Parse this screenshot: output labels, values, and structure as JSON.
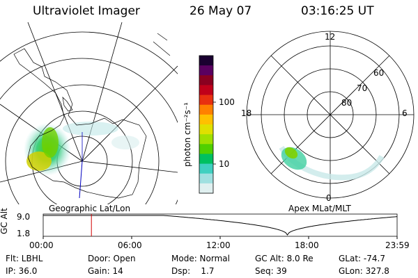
{
  "header": {
    "title": "Ultraviolet Imager",
    "date": "26 May 07",
    "time": "03:16:25 UT"
  },
  "left_panel": {
    "caption": "Geographic Lat/Lon"
  },
  "right_panel": {
    "caption": "Apex MLat/MLT",
    "mlt_labels": [
      "12",
      "18",
      "6",
      "0"
    ],
    "lat_labels": [
      "60",
      "70",
      "80"
    ]
  },
  "colorbar": {
    "unit": "photon cm⁻²s⁻¹",
    "ticks": [
      "100",
      "10"
    ],
    "colors": [
      "#1a0030",
      "#5a0060",
      "#8a0020",
      "#c0001a",
      "#e83010",
      "#ff8000",
      "#ffc000",
      "#e0e000",
      "#a0e000",
      "#50d000",
      "#00c060",
      "#40d0c0",
      "#a0e0e0",
      "#e0f0f0"
    ]
  },
  "altitude_plot": {
    "ylabel": "GC Alt",
    "y_ticks": [
      "9.0",
      "1.8"
    ],
    "x_ticks": [
      "00:00",
      "06:00",
      "12:00",
      "18:00",
      "23:59"
    ],
    "marker_hours": 3.27,
    "marker_color": "#d00000"
  },
  "footer": {
    "row1": [
      "Flt: LBHL",
      "Door: Open",
      "Mode: Normal",
      "GC Alt: 8.0 Re",
      "GLat: -74.7"
    ],
    "row2": [
      "IP: 36.0",
      "Gain: 14",
      "Dsp:    1.7",
      "Seq: 39",
      "GLon: 327.8"
    ]
  }
}
